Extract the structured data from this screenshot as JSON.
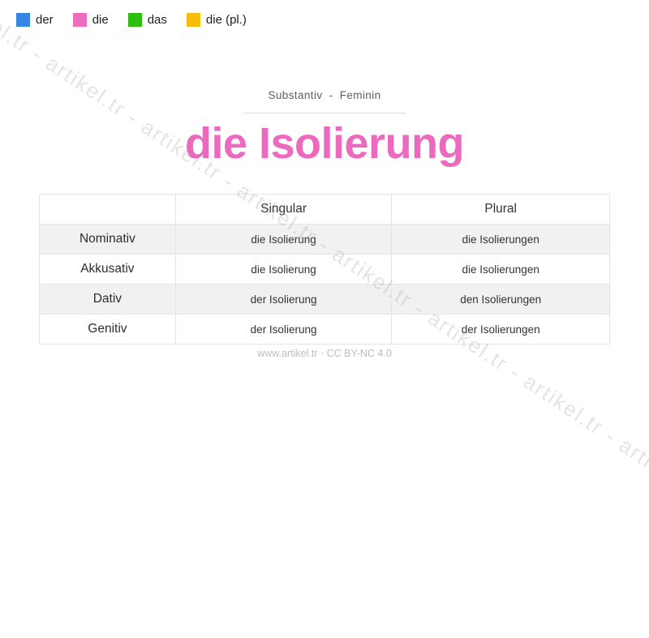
{
  "legend": {
    "items": [
      {
        "label": "der",
        "color": "#3585e3"
      },
      {
        "label": "die",
        "color": "#ec6cbf"
      },
      {
        "label": "das",
        "color": "#2ebf0e"
      },
      {
        "label": "die (pl.)",
        "color": "#f7bd0a"
      }
    ]
  },
  "header": {
    "category": "Substantiv - Feminin",
    "title": "die Isolierung",
    "title_color": "#ec6abe"
  },
  "table": {
    "columns": [
      "",
      "Singular",
      "Plural"
    ],
    "stripe_color": "#f1f1f1",
    "rows": [
      {
        "case": "Nominativ",
        "singular": "die Isolierung",
        "plural": "die Isolierungen",
        "singular_color": "#ee7ec7",
        "plural_color": "#f2c032"
      },
      {
        "case": "Akkusativ",
        "singular": "die Isolierung",
        "plural": "die Isolierungen"
      },
      {
        "case": "Dativ",
        "singular": "der Isolierung",
        "plural": "den Isolierungen"
      },
      {
        "case": "Genitiv",
        "singular": "der Isolierung",
        "plural": "der Isolierungen"
      }
    ]
  },
  "footer": {
    "text": "www.artikel.tr · CC BY-NC 4.0"
  },
  "watermark": {
    "text": "artikel.tr - artikel.tr - artikel.tr - artikel.tr - artikel.tr - artikel.tr - artikel.tr - artikel.tr - artikel.tr"
  }
}
